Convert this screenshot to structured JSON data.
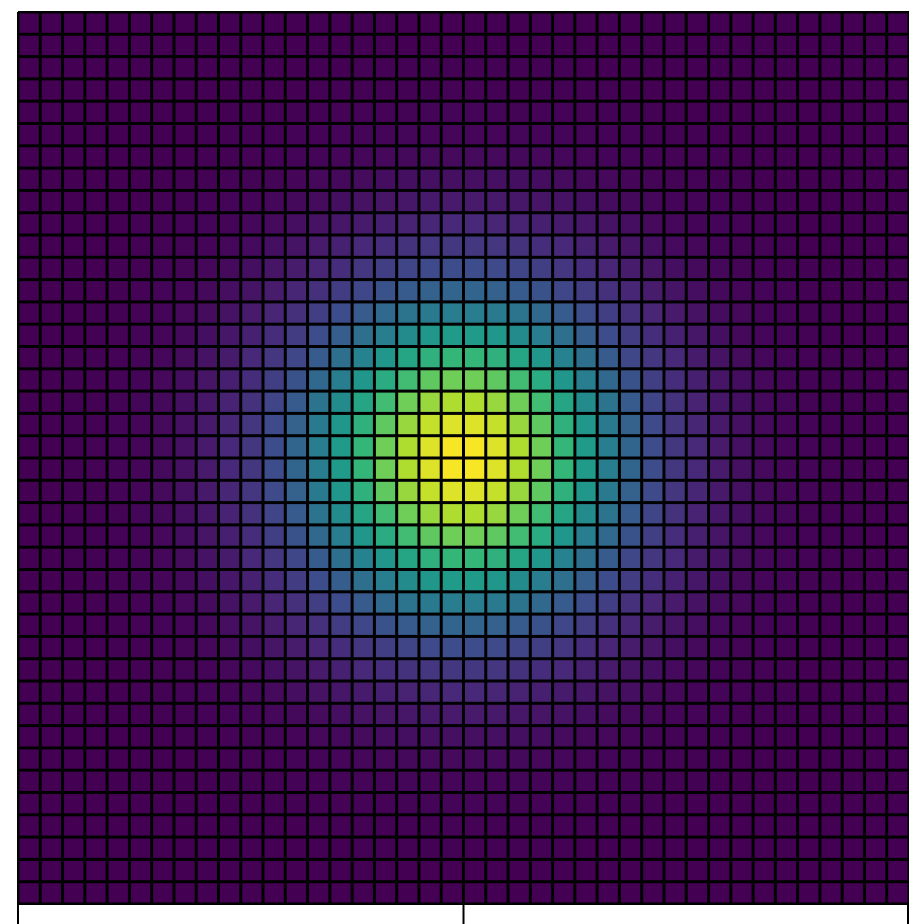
{
  "chart_data": {
    "type": "heatmap",
    "title": "",
    "xlabel": "",
    "ylabel": "",
    "grid": {
      "rows": 40,
      "cols": 40
    },
    "field": {
      "function": "gaussian",
      "center_col": 19.5,
      "center_row": 19.5,
      "sigma": 5.0,
      "peak": 1.0
    },
    "colormap": "viridis",
    "colormap_stops": [
      "#440154",
      "#482878",
      "#3e4989",
      "#31688e",
      "#26828e",
      "#1f9e89",
      "#35b779",
      "#6ece58",
      "#b5de2b",
      "#fde725"
    ],
    "cell_border_color": "#000000",
    "x_ticks": [
      "",
      "",
      ""
    ],
    "y_ticks": [],
    "x_axis_visible": true,
    "y_axis_visible": true,
    "right_spine_visible": false,
    "top_spine_visible": true
  }
}
